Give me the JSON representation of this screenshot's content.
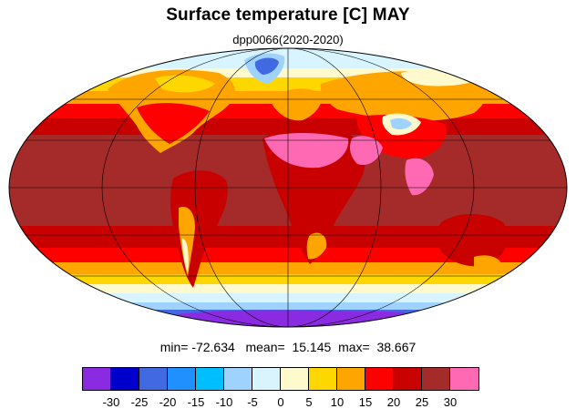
{
  "title": "Surface temperature [C] MAY",
  "subtitle": "dpp0066(2020-2020)",
  "stats": {
    "min_label": "min=",
    "min_value": "-72.634",
    "mean_label": "mean=",
    "mean_value": "15.145",
    "max_label": "max=",
    "max_value": "38.667"
  },
  "colorbar": {
    "colors": [
      "#8a2be2",
      "#0000cd",
      "#4169e1",
      "#1e90ff",
      "#00bfff",
      "#a0d2ff",
      "#d8f5ff",
      "#fffacd",
      "#ffd700",
      "#ffa500",
      "#ff0000",
      "#c80000",
      "#a52a2a",
      "#ff69b4"
    ],
    "tick_labels": [
      "-30",
      "-25",
      "-20",
      "-15",
      "-10",
      "-5",
      "0",
      "5",
      "10",
      "15",
      "20",
      "25",
      "30"
    ]
  }
}
